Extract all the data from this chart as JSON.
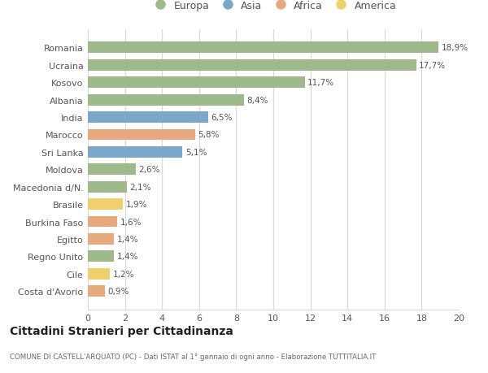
{
  "categories": [
    "Romania",
    "Ucraina",
    "Kosovo",
    "Albania",
    "India",
    "Marocco",
    "Sri Lanka",
    "Moldova",
    "Macedonia d/N.",
    "Brasile",
    "Burkina Faso",
    "Egitto",
    "Regno Unito",
    "Cile",
    "Costa d'Avorio"
  ],
  "values": [
    18.9,
    17.7,
    11.7,
    8.4,
    6.5,
    5.8,
    5.1,
    2.6,
    2.1,
    1.9,
    1.6,
    1.4,
    1.4,
    1.2,
    0.9
  ],
  "labels": [
    "18,9%",
    "17,7%",
    "11,7%",
    "8,4%",
    "6,5%",
    "5,8%",
    "5,1%",
    "2,6%",
    "2,1%",
    "1,9%",
    "1,6%",
    "1,4%",
    "1,4%",
    "1,2%",
    "0,9%"
  ],
  "continents": [
    "Europa",
    "Europa",
    "Europa",
    "Europa",
    "Asia",
    "Africa",
    "Asia",
    "Europa",
    "Europa",
    "America",
    "Africa",
    "Africa",
    "Europa",
    "America",
    "Africa"
  ],
  "colors": {
    "Europa": "#9eba8a",
    "Asia": "#7ba7ca",
    "Africa": "#e8a97e",
    "America": "#f0d06e"
  },
  "legend_order": [
    "Europa",
    "Asia",
    "Africa",
    "America"
  ],
  "title": "Cittadini Stranieri per Cittadinanza",
  "subtitle": "COMUNE DI CASTELL'ARQUATO (PC) - Dati ISTAT al 1° gennaio di ogni anno - Elaborazione TUTTITALIA.IT",
  "xlim": [
    0,
    20
  ],
  "xticks": [
    0,
    2,
    4,
    6,
    8,
    10,
    12,
    14,
    16,
    18,
    20
  ],
  "background_color": "#ffffff",
  "grid_color": "#d8d8d8"
}
